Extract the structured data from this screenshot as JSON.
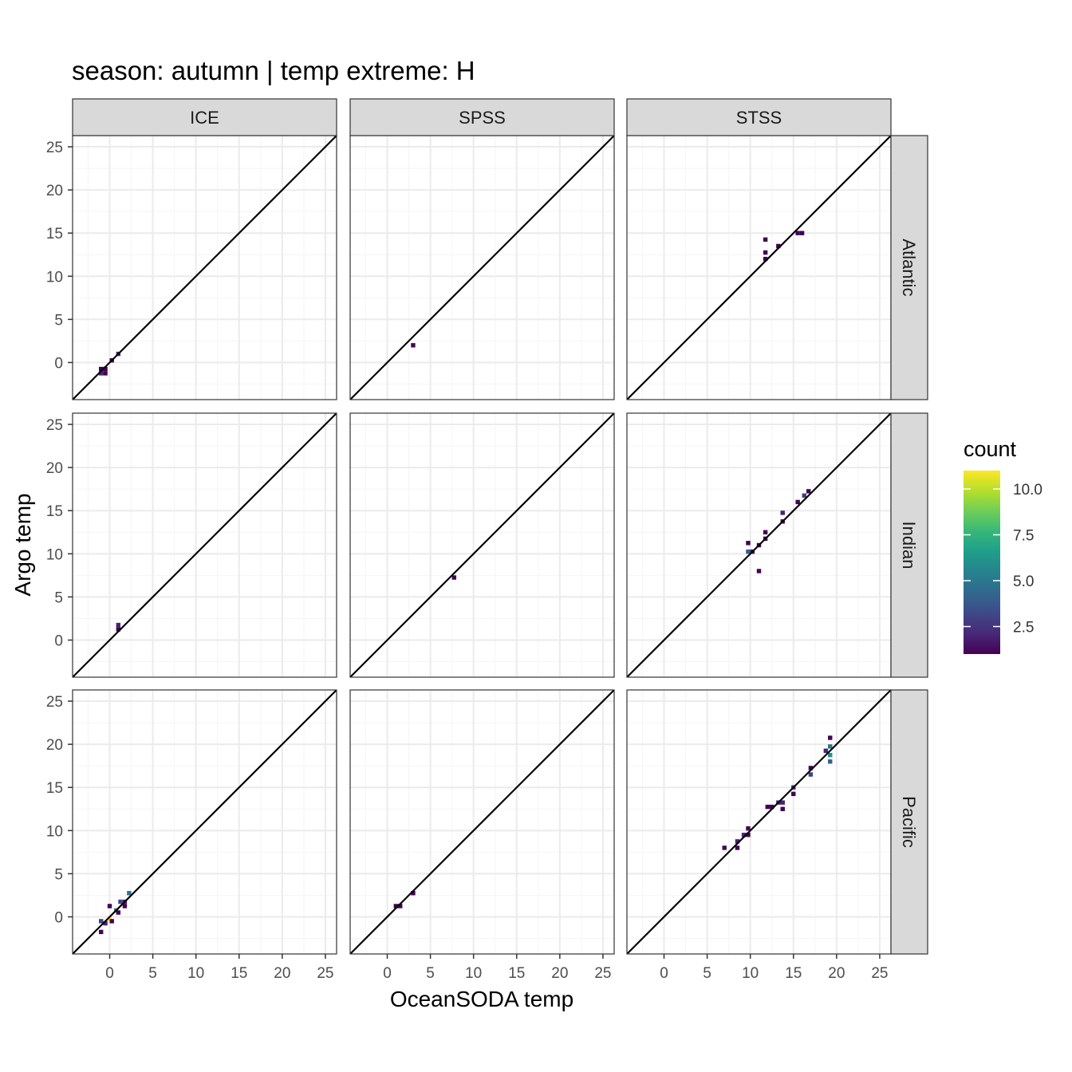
{
  "chart_data": {
    "type": "heatmap",
    "title": "season: autumn | temp extreme: H",
    "xlabel": "OceanSODA temp",
    "ylabel": "Argo temp",
    "facet_columns": [
      "ICE",
      "SPSS",
      "STSS"
    ],
    "facet_rows": [
      "Atlantic",
      "Indian",
      "Pacific"
    ],
    "x_ticks": [
      0,
      5,
      10,
      15,
      20,
      25
    ],
    "y_ticks": [
      0,
      5,
      10,
      15,
      20,
      25
    ],
    "xlim": [
      -4.3,
      26.3
    ],
    "ylim": [
      -4.3,
      26.3
    ],
    "reference_line": "y = x",
    "grid": true,
    "legend": {
      "title": "count",
      "ticks": [
        "2.5",
        "5.0",
        "7.5",
        "10.0"
      ],
      "range": [
        1,
        11
      ],
      "position": "right"
    },
    "colors": {
      "viridis": [
        "#440154",
        "#482878",
        "#3e4989",
        "#31688e",
        "#26828e",
        "#1f9e89",
        "#35b779",
        "#6ece58",
        "#b5de2b",
        "#fde725"
      ],
      "grid_major": "#ebebeb",
      "grid_minor": "#f5f5f5",
      "strip_fill": "#d9d9d9",
      "panel_border": "#333333"
    },
    "bin_width": 0.5,
    "cells": [
      {
        "row": "Atlantic",
        "col": "ICE",
        "x": -1.0,
        "y": -0.75,
        "count": 1
      },
      {
        "row": "Atlantic",
        "col": "ICE",
        "x": -0.5,
        "y": -0.75,
        "count": 1
      },
      {
        "row": "Atlantic",
        "col": "ICE",
        "x": -1.0,
        "y": -1.25,
        "count": 2
      },
      {
        "row": "Atlantic",
        "col": "ICE",
        "x": -0.5,
        "y": -1.25,
        "count": 1
      },
      {
        "row": "Atlantic",
        "col": "ICE",
        "x": 0.25,
        "y": 0.25,
        "count": 1
      },
      {
        "row": "Atlantic",
        "col": "ICE",
        "x": 1.0,
        "y": 1.0,
        "count": 2
      },
      {
        "row": "Atlantic",
        "col": "SPSS",
        "x": 3.0,
        "y": 2.0,
        "count": 1
      },
      {
        "row": "Atlantic",
        "col": "STSS",
        "x": 11.75,
        "y": 14.25,
        "count": 1
      },
      {
        "row": "Atlantic",
        "col": "STSS",
        "x": 11.75,
        "y": 12.75,
        "count": 1
      },
      {
        "row": "Atlantic",
        "col": "STSS",
        "x": 11.75,
        "y": 12.0,
        "count": 1
      },
      {
        "row": "Atlantic",
        "col": "STSS",
        "x": 13.25,
        "y": 13.5,
        "count": 1
      },
      {
        "row": "Atlantic",
        "col": "STSS",
        "x": 15.5,
        "y": 15.0,
        "count": 1
      },
      {
        "row": "Atlantic",
        "col": "STSS",
        "x": 16.0,
        "y": 15.0,
        "count": 1
      },
      {
        "row": "Indian",
        "col": "ICE",
        "x": 1.0,
        "y": 1.75,
        "count": 2
      },
      {
        "row": "Indian",
        "col": "ICE",
        "x": 1.0,
        "y": 1.25,
        "count": 1
      },
      {
        "row": "Indian",
        "col": "SPSS",
        "x": 7.75,
        "y": 7.25,
        "count": 1
      },
      {
        "row": "Indian",
        "col": "STSS",
        "x": 9.75,
        "y": 11.25,
        "count": 1
      },
      {
        "row": "Indian",
        "col": "STSS",
        "x": 9.75,
        "y": 10.25,
        "count": 4
      },
      {
        "row": "Indian",
        "col": "STSS",
        "x": 10.25,
        "y": 10.25,
        "count": 1
      },
      {
        "row": "Indian",
        "col": "STSS",
        "x": 11.0,
        "y": 11.0,
        "count": 1
      },
      {
        "row": "Indian",
        "col": "STSS",
        "x": 11.75,
        "y": 12.5,
        "count": 1
      },
      {
        "row": "Indian",
        "col": "STSS",
        "x": 11.75,
        "y": 11.75,
        "count": 1
      },
      {
        "row": "Indian",
        "col": "STSS",
        "x": 11.0,
        "y": 8.0,
        "count": 1
      },
      {
        "row": "Indian",
        "col": "STSS",
        "x": 13.75,
        "y": 14.75,
        "count": 2
      },
      {
        "row": "Indian",
        "col": "STSS",
        "x": 13.75,
        "y": 13.75,
        "count": 1
      },
      {
        "row": "Indian",
        "col": "STSS",
        "x": 15.5,
        "y": 16.0,
        "count": 1
      },
      {
        "row": "Indian",
        "col": "STSS",
        "x": 16.25,
        "y": 16.75,
        "count": 3
      },
      {
        "row": "Indian",
        "col": "STSS",
        "x": 16.75,
        "y": 17.25,
        "count": 1
      },
      {
        "row": "Pacific",
        "col": "ICE",
        "x": -1.0,
        "y": -0.5,
        "count": 3
      },
      {
        "row": "Pacific",
        "col": "ICE",
        "x": -1.0,
        "y": -1.75,
        "count": 1
      },
      {
        "row": "Pacific",
        "col": "ICE",
        "x": -0.5,
        "y": -0.75,
        "count": 2
      },
      {
        "row": "Pacific",
        "col": "ICE",
        "x": 0.0,
        "y": -0.25,
        "count": 11
      },
      {
        "row": "Pacific",
        "col": "ICE",
        "x": 0.0,
        "y": 1.25,
        "count": 1
      },
      {
        "row": "Pacific",
        "col": "ICE",
        "x": 0.25,
        "y": -0.5,
        "count": 1
      },
      {
        "row": "Pacific",
        "col": "ICE",
        "x": 0.75,
        "y": 0.75,
        "count": 6
      },
      {
        "row": "Pacific",
        "col": "ICE",
        "x": 1.0,
        "y": 0.5,
        "count": 1
      },
      {
        "row": "Pacific",
        "col": "ICE",
        "x": 1.25,
        "y": 1.75,
        "count": 3
      },
      {
        "row": "Pacific",
        "col": "ICE",
        "x": 1.75,
        "y": 1.75,
        "count": 2
      },
      {
        "row": "Pacific",
        "col": "ICE",
        "x": 1.75,
        "y": 1.25,
        "count": 1
      },
      {
        "row": "Pacific",
        "col": "ICE",
        "x": 2.25,
        "y": 2.75,
        "count": 5
      },
      {
        "row": "Pacific",
        "col": "SPSS",
        "x": 1.0,
        "y": 1.25,
        "count": 1
      },
      {
        "row": "Pacific",
        "col": "SPSS",
        "x": 1.5,
        "y": 1.25,
        "count": 1
      },
      {
        "row": "Pacific",
        "col": "SPSS",
        "x": 3.0,
        "y": 2.75,
        "count": 1
      },
      {
        "row": "Pacific",
        "col": "STSS",
        "x": 7.0,
        "y": 8.0,
        "count": 1
      },
      {
        "row": "Pacific",
        "col": "STSS",
        "x": 8.5,
        "y": 8.75,
        "count": 2
      },
      {
        "row": "Pacific",
        "col": "STSS",
        "x": 8.5,
        "y": 8.0,
        "count": 1
      },
      {
        "row": "Pacific",
        "col": "STSS",
        "x": 9.25,
        "y": 9.5,
        "count": 2
      },
      {
        "row": "Pacific",
        "col": "STSS",
        "x": 9.75,
        "y": 10.25,
        "count": 1
      },
      {
        "row": "Pacific",
        "col": "STSS",
        "x": 9.75,
        "y": 9.5,
        "count": 1
      },
      {
        "row": "Pacific",
        "col": "STSS",
        "x": 12.0,
        "y": 12.75,
        "count": 1
      },
      {
        "row": "Pacific",
        "col": "STSS",
        "x": 12.5,
        "y": 12.75,
        "count": 1
      },
      {
        "row": "Pacific",
        "col": "STSS",
        "x": 13.25,
        "y": 13.25,
        "count": 2
      },
      {
        "row": "Pacific",
        "col": "STSS",
        "x": 13.75,
        "y": 13.25,
        "count": 2
      },
      {
        "row": "Pacific",
        "col": "STSS",
        "x": 13.75,
        "y": 12.5,
        "count": 1
      },
      {
        "row": "Pacific",
        "col": "STSS",
        "x": 15.0,
        "y": 15.0,
        "count": 2
      },
      {
        "row": "Pacific",
        "col": "STSS",
        "x": 15.0,
        "y": 14.25,
        "count": 1
      },
      {
        "row": "Pacific",
        "col": "STSS",
        "x": 17.0,
        "y": 17.25,
        "count": 1
      },
      {
        "row": "Pacific",
        "col": "STSS",
        "x": 17.0,
        "y": 16.5,
        "count": 3
      },
      {
        "row": "Pacific",
        "col": "STSS",
        "x": 18.75,
        "y": 19.25,
        "count": 2
      },
      {
        "row": "Pacific",
        "col": "STSS",
        "x": 19.25,
        "y": 20.75,
        "count": 1
      },
      {
        "row": "Pacific",
        "col": "STSS",
        "x": 19.25,
        "y": 19.75,
        "count": 5
      },
      {
        "row": "Pacific",
        "col": "STSS",
        "x": 19.25,
        "y": 18.75,
        "count": 6
      },
      {
        "row": "Pacific",
        "col": "STSS",
        "x": 19.25,
        "y": 18.0,
        "count": 4
      }
    ]
  }
}
